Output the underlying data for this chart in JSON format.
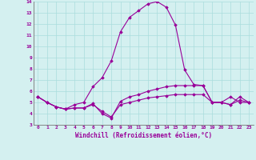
{
  "x": [
    0,
    1,
    2,
    3,
    4,
    5,
    6,
    7,
    8,
    9,
    10,
    11,
    12,
    13,
    14,
    15,
    16,
    17,
    18,
    19,
    20,
    21,
    22,
    23
  ],
  "line1": [
    5.5,
    5.0,
    4.6,
    4.4,
    4.8,
    5.0,
    6.4,
    7.2,
    8.7,
    11.3,
    12.6,
    13.2,
    13.8,
    14.0,
    13.5,
    11.9,
    7.9,
    6.6,
    6.5,
    5.0,
    5.0,
    5.5,
    5.0,
    5.0
  ],
  "line2": [
    5.5,
    5.0,
    4.6,
    4.4,
    4.5,
    4.5,
    4.9,
    4.0,
    3.6,
    5.1,
    5.5,
    5.7,
    6.0,
    6.2,
    6.4,
    6.5,
    6.5,
    6.5,
    6.5,
    5.0,
    5.0,
    4.8,
    5.5,
    5.0
  ],
  "line3": [
    5.5,
    5.0,
    4.6,
    4.4,
    4.5,
    4.5,
    4.8,
    4.2,
    3.7,
    4.8,
    5.0,
    5.2,
    5.4,
    5.5,
    5.6,
    5.7,
    5.7,
    5.7,
    5.7,
    5.0,
    5.0,
    4.8,
    5.2,
    5.0
  ],
  "color": "#990099",
  "bg_color": "#d4f0f0",
  "xlabel": "Windchill (Refroidissement éolien,°C)",
  "ylim": [
    3,
    14
  ],
  "xlim": [
    -0.5,
    23.5
  ],
  "yticks": [
    3,
    4,
    5,
    6,
    7,
    8,
    9,
    10,
    11,
    12,
    13,
    14
  ],
  "xticks": [
    0,
    1,
    2,
    3,
    4,
    5,
    6,
    7,
    8,
    9,
    10,
    11,
    12,
    13,
    14,
    15,
    16,
    17,
    18,
    19,
    20,
    21,
    22,
    23
  ],
  "grid_color": "#aadddd",
  "marker": "D",
  "markersize": 1.8,
  "linewidth": 0.8,
  "tick_fontsize": 4.5,
  "xlabel_fontsize": 5.5
}
